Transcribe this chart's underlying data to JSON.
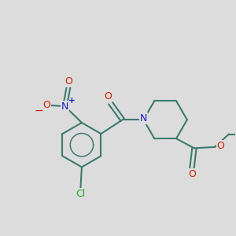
{
  "bg_color": "#dcdcdc",
  "bond_color": "#3d7a6e",
  "N_color": "#1a1acc",
  "O_color": "#cc2200",
  "Cl_color": "#22aa22",
  "bond_width": 1.5,
  "fig_width": 3.0,
  "fig_height": 3.0,
  "dpi": 100,
  "xlim": [
    0,
    10
  ],
  "ylim": [
    0,
    10
  ]
}
